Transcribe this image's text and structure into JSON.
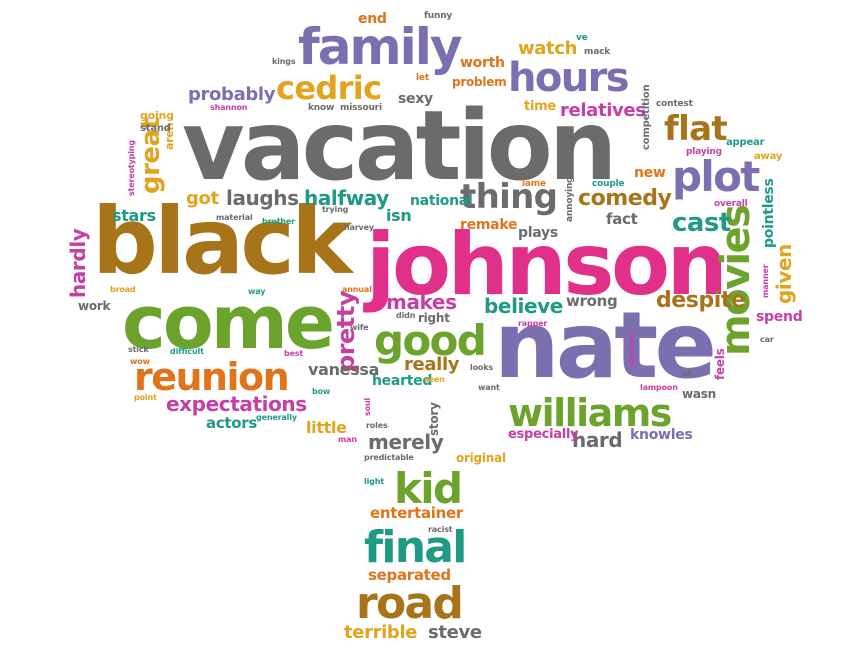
{
  "colors": {
    "gray": "#6b6b6b",
    "purple": "#7b6fb0",
    "pink": "#e0308a",
    "brown": "#a8741a",
    "green": "#6ba32d",
    "orange": "#e0741a",
    "gold": "#e2a41e",
    "teal": "#1f9a84",
    "red": "#d9472b",
    "magenta": "#c63fa5"
  },
  "words": [
    {
      "text": "vacation",
      "color": "gray"
    },
    {
      "text": "johnson",
      "color": "pink"
    },
    {
      "text": "black",
      "color": "brown"
    },
    {
      "text": "nate",
      "color": "purple"
    },
    {
      "text": "come",
      "color": "green"
    },
    {
      "text": "family",
      "color": "purple"
    },
    {
      "text": "reunion",
      "color": "orange"
    },
    {
      "text": "movies",
      "color": "green"
    },
    {
      "text": "williams",
      "color": "green"
    },
    {
      "text": "final",
      "color": "teal"
    },
    {
      "text": "road",
      "color": "brown"
    },
    {
      "text": "hours",
      "color": "purple"
    },
    {
      "text": "plot",
      "color": "purple"
    },
    {
      "text": "good",
      "color": "green"
    },
    {
      "text": "kid",
      "color": "green"
    },
    {
      "text": "cedric",
      "color": "gold"
    },
    {
      "text": "thing",
      "color": "gray"
    },
    {
      "text": "flat",
      "color": "brown"
    },
    {
      "text": "expectations",
      "color": "magenta"
    },
    {
      "text": "comedy",
      "color": "brown"
    },
    {
      "text": "great",
      "color": "gold"
    },
    {
      "text": "pretty",
      "color": "magenta"
    },
    {
      "text": "cast",
      "color": "teal"
    },
    {
      "text": "laughs",
      "color": "gray"
    },
    {
      "text": "halfway",
      "color": "teal"
    },
    {
      "text": "makes",
      "color": "magenta"
    },
    {
      "text": "believe",
      "color": "teal"
    },
    {
      "text": "despite",
      "color": "brown"
    },
    {
      "text": "merely",
      "color": "gray"
    },
    {
      "text": "really",
      "color": "brown"
    },
    {
      "text": "relatives",
      "color": "magenta"
    },
    {
      "text": "probably",
      "color": "purple"
    },
    {
      "text": "hard",
      "color": "gray"
    },
    {
      "text": "given",
      "color": "gold"
    },
    {
      "text": "watch",
      "color": "gold"
    },
    {
      "text": "worth",
      "color": "orange"
    },
    {
      "text": "terrible",
      "color": "gold"
    },
    {
      "text": "steve",
      "color": "gray"
    },
    {
      "text": "separated",
      "color": "orange"
    },
    {
      "text": "entertainer",
      "color": "orange"
    },
    {
      "text": "vanessa",
      "color": "gray"
    },
    {
      "text": "hearted",
      "color": "teal"
    },
    {
      "text": "actors",
      "color": "teal"
    },
    {
      "text": "little",
      "color": "gold"
    },
    {
      "text": "stars",
      "color": "teal"
    },
    {
      "text": "got",
      "color": "gold"
    },
    {
      "text": "hardly",
      "color": "magenta"
    },
    {
      "text": "especially",
      "color": "magenta"
    },
    {
      "text": "knowles",
      "color": "purple"
    },
    {
      "text": "wrong",
      "color": "gray"
    },
    {
      "text": "national",
      "color": "teal"
    },
    {
      "text": "remake",
      "color": "orange"
    },
    {
      "text": "plays",
      "color": "gray"
    },
    {
      "text": "isn",
      "color": "teal"
    },
    {
      "text": "fact",
      "color": "gray"
    },
    {
      "text": "new",
      "color": "orange"
    },
    {
      "text": "sexy",
      "color": "gray"
    },
    {
      "text": "time",
      "color": "gold"
    },
    {
      "text": "problem",
      "color": "orange"
    },
    {
      "text": "end",
      "color": "orange"
    },
    {
      "text": "pointless",
      "color": "teal"
    },
    {
      "text": "spend",
      "color": "magenta"
    },
    {
      "text": "original",
      "color": "gold"
    },
    {
      "text": "story",
      "color": "gray"
    },
    {
      "text": "right",
      "color": "gray"
    },
    {
      "text": "wasn",
      "color": "gray"
    },
    {
      "text": "feels",
      "color": "magenta"
    },
    {
      "text": "work",
      "color": "gray"
    },
    {
      "text": "going",
      "color": "gold"
    },
    {
      "text": "aren",
      "color": "gold"
    },
    {
      "text": "stand",
      "color": "gray"
    },
    {
      "text": "competition",
      "color": "gray"
    },
    {
      "text": "contest",
      "color": "gray"
    },
    {
      "text": "appear",
      "color": "teal"
    },
    {
      "text": "playing",
      "color": "magenta"
    },
    {
      "text": "away",
      "color": "gold"
    },
    {
      "text": "overall",
      "color": "magenta"
    },
    {
      "text": "couple",
      "color": "teal"
    },
    {
      "text": "lame",
      "color": "orange"
    },
    {
      "text": "annoying",
      "color": "gray"
    },
    {
      "text": "funny",
      "color": "gray"
    },
    {
      "text": "mack",
      "color": "gray"
    },
    {
      "text": "ve",
      "color": "teal"
    },
    {
      "text": "let",
      "color": "orange"
    },
    {
      "text": "know",
      "color": "gray"
    },
    {
      "text": "missouri",
      "color": "gray"
    },
    {
      "text": "kings",
      "color": "gray"
    },
    {
      "text": "shannon",
      "color": "magenta"
    },
    {
      "text": "stereotyping",
      "color": "magenta"
    },
    {
      "text": "material",
      "color": "gray"
    },
    {
      "text": "brother",
      "color": "teal"
    },
    {
      "text": "trying",
      "color": "gray"
    },
    {
      "text": "harvey",
      "color": "gray"
    },
    {
      "text": "broad",
      "color": "gold"
    },
    {
      "text": "way",
      "color": "teal"
    },
    {
      "text": "annual",
      "color": "orange"
    },
    {
      "text": "wife",
      "color": "gray"
    },
    {
      "text": "didn",
      "color": "gray"
    },
    {
      "text": "rapper",
      "color": "magenta"
    },
    {
      "text": "looks",
      "color": "gray"
    },
    {
      "text": "want",
      "color": "gray"
    },
    {
      "text": "seen",
      "color": "gold"
    },
    {
      "text": "modern",
      "color": "magenta"
    },
    {
      "text": "ok",
      "color": "gray"
    },
    {
      "text": "lampoon",
      "color": "magenta"
    },
    {
      "text": "manner",
      "color": "magenta"
    },
    {
      "text": "car",
      "color": "gray"
    },
    {
      "text": "stick",
      "color": "gray"
    },
    {
      "text": "wow",
      "color": "orange"
    },
    {
      "text": "difficult",
      "color": "teal"
    },
    {
      "text": "best",
      "color": "magenta"
    },
    {
      "text": "point",
      "color": "gold"
    },
    {
      "text": "bow",
      "color": "teal"
    },
    {
      "text": "generally",
      "color": "teal"
    },
    {
      "text": "soul",
      "color": "magenta"
    },
    {
      "text": "roles",
      "color": "gray"
    },
    {
      "text": "man",
      "color": "magenta"
    },
    {
      "text": "predictable",
      "color": "gray"
    },
    {
      "text": "light",
      "color": "teal"
    },
    {
      "text": "racist",
      "color": "gray"
    }
  ]
}
